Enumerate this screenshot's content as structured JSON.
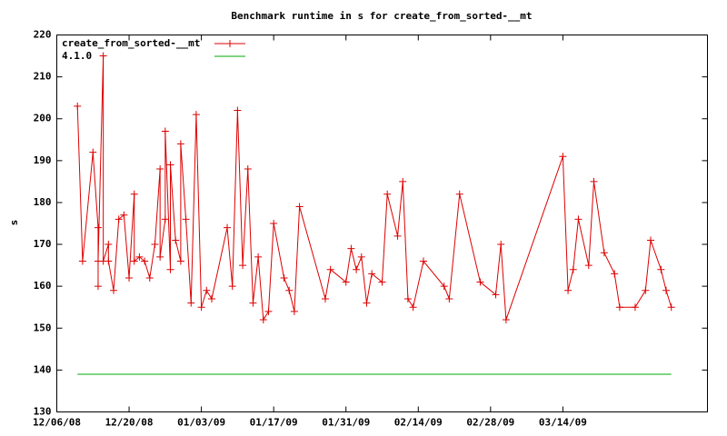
{
  "chart_data": {
    "type": "line",
    "title": "Benchmark runtime in s for create_from_sorted-__mt",
    "y_label": "s",
    "xlim": [
      "2008-12-06",
      "2009-04-11"
    ],
    "xticks": [
      {
        "value": "2008-12-06",
        "label": "12/06/08"
      },
      {
        "value": "2008-12-20",
        "label": "12/20/08"
      },
      {
        "value": "2009-01-03",
        "label": "01/03/09"
      },
      {
        "value": "2009-01-17",
        "label": "01/17/09"
      },
      {
        "value": "2009-01-31",
        "label": "01/31/09"
      },
      {
        "value": "2009-02-14",
        "label": "02/14/09"
      },
      {
        "value": "2009-02-28",
        "label": "02/28/09"
      },
      {
        "value": "2009-03-14",
        "label": "03/14/09"
      }
    ],
    "ylim": [
      130,
      220
    ],
    "yticks": [
      130,
      140,
      150,
      160,
      170,
      180,
      190,
      200,
      210,
      220
    ],
    "legend": "top-left",
    "series": [
      {
        "name": "create_from_sorted-__mt",
        "color": "#dd0000",
        "markers": true,
        "x": [
          "2008-12-10",
          "2008-12-11",
          "2008-12-13",
          "2008-12-14",
          "2008-12-14",
          "2008-12-14",
          "2008-12-15",
          "2008-12-15",
          "2008-12-16",
          "2008-12-16",
          "2008-12-17",
          "2008-12-18",
          "2008-12-19",
          "2008-12-20",
          "2008-12-21",
          "2008-12-21",
          "2008-12-22",
          "2008-12-23",
          "2008-12-24",
          "2008-12-25",
          "2008-12-26",
          "2008-12-26",
          "2008-12-27",
          "2008-12-27",
          "2008-12-28",
          "2008-12-28",
          "2008-12-29",
          "2008-12-30",
          "2008-12-30",
          "2008-12-31",
          "2009-01-01",
          "2009-01-02",
          "2009-01-03",
          "2009-01-04",
          "2009-01-05",
          "2009-01-08",
          "2009-01-09",
          "2009-01-10",
          "2009-01-11",
          "2009-01-12",
          "2009-01-13",
          "2009-01-14",
          "2009-01-15",
          "2009-01-16",
          "2009-01-17",
          "2009-01-19",
          "2009-01-20",
          "2009-01-21",
          "2009-01-22",
          "2009-01-27",
          "2009-01-28",
          "2009-01-31",
          "2009-02-01",
          "2009-02-02",
          "2009-02-03",
          "2009-02-04",
          "2009-02-05",
          "2009-02-07",
          "2009-02-08",
          "2009-02-10",
          "2009-02-11",
          "2009-02-12",
          "2009-02-13",
          "2009-02-15",
          "2009-02-19",
          "2009-02-20",
          "2009-02-22",
          "2009-02-26",
          "2009-03-01",
          "2009-03-02",
          "2009-03-03",
          "2009-03-14",
          "2009-03-15",
          "2009-03-16",
          "2009-03-17",
          "2009-03-19",
          "2009-03-20",
          "2009-03-22",
          "2009-03-24",
          "2009-03-25",
          "2009-03-28",
          "2009-03-30",
          "2009-03-31",
          "2009-04-02",
          "2009-04-03",
          "2009-04-04"
        ],
        "values": [
          203,
          166,
          192,
          174,
          160,
          166,
          215,
          166,
          170,
          166,
          159,
          176,
          177,
          162,
          182,
          166,
          167,
          166,
          162,
          170,
          188,
          167,
          176,
          197,
          164,
          189,
          171,
          166,
          194,
          176,
          156,
          201,
          155,
          159,
          157,
          174,
          160,
          202,
          165,
          188,
          156,
          167,
          152,
          154,
          175,
          162,
          159,
          154,
          179,
          157,
          164,
          161,
          169,
          164,
          167,
          156,
          163,
          161,
          182,
          172,
          185,
          157,
          155,
          166,
          160,
          157,
          182,
          161,
          158,
          170,
          152,
          191,
          159,
          164,
          176,
          165,
          185,
          168,
          163,
          155,
          155,
          159,
          171,
          164,
          159,
          155
        ]
      },
      {
        "name": "4.1.0",
        "color": "#00aa00",
        "markers": false,
        "x": [
          "2008-12-10",
          "2009-04-04"
        ],
        "values": [
          139,
          139
        ]
      }
    ]
  }
}
